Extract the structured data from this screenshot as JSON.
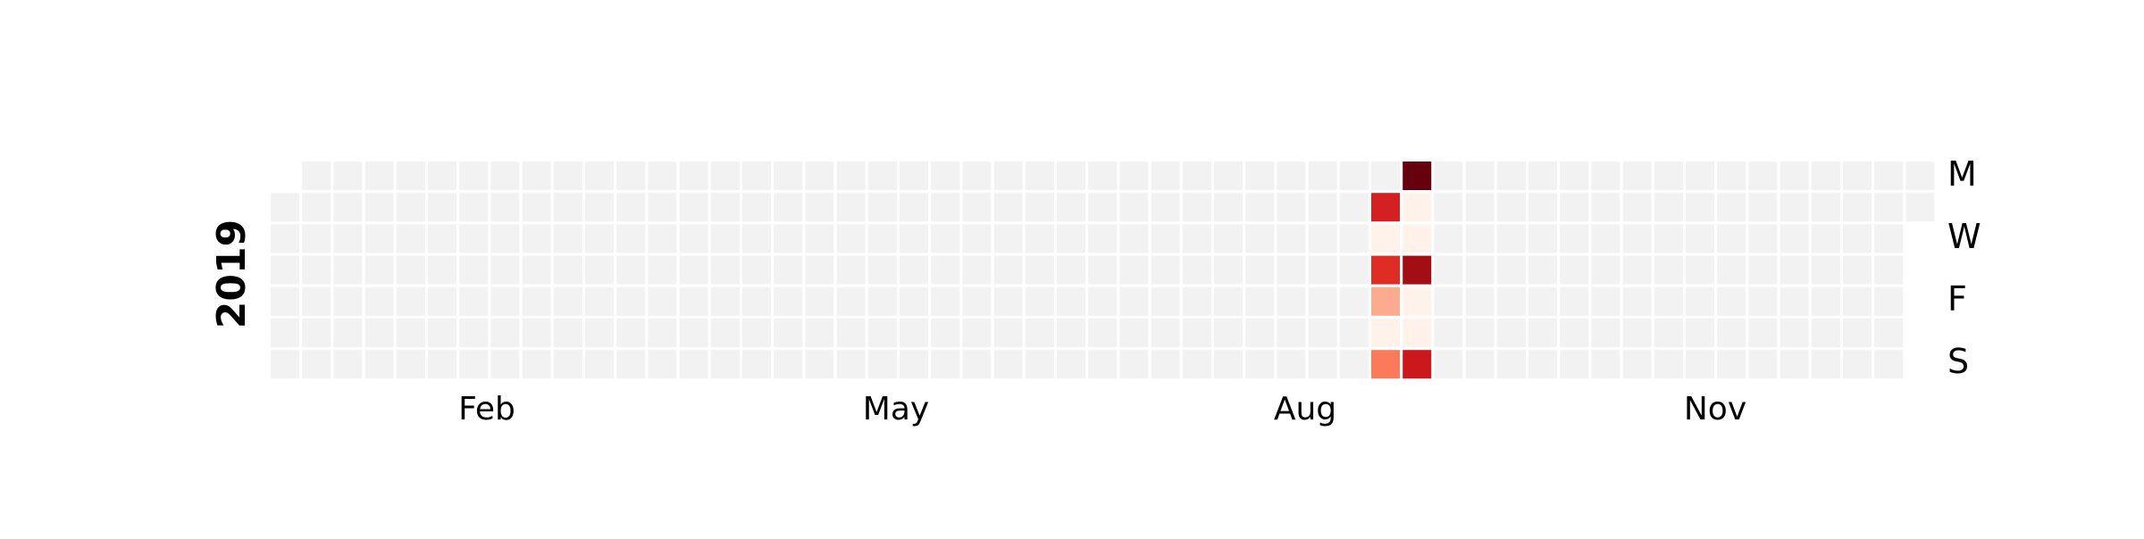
{
  "chart_data": {
    "type": "heatmap",
    "title": "",
    "year_label": "2019",
    "months": [
      "Feb",
      "May",
      "Aug",
      "Nov"
    ],
    "day_labels": [
      "M",
      "W",
      "F",
      "S"
    ],
    "grid": {
      "weeks": 53,
      "days_per_week": 7,
      "first_day_row": 1,
      "last_day_row": 1
    },
    "empty_color": "#f2f2f2",
    "colormap": "Reds",
    "vmin": 0,
    "vmax": 1,
    "highlighted_cells": [
      {
        "week": 35,
        "row": 1,
        "value": 0.72
      },
      {
        "week": 35,
        "row": 2,
        "value": 0.02
      },
      {
        "week": 35,
        "row": 3,
        "value": 0.68
      },
      {
        "week": 35,
        "row": 4,
        "value": 0.3
      },
      {
        "week": 35,
        "row": 5,
        "value": 0.02
      },
      {
        "week": 35,
        "row": 6,
        "value": 0.45
      },
      {
        "week": 36,
        "row": 0,
        "value": 1.0
      },
      {
        "week": 36,
        "row": 1,
        "value": 0.02
      },
      {
        "week": 36,
        "row": 2,
        "value": 0.02
      },
      {
        "week": 36,
        "row": 3,
        "value": 0.88
      },
      {
        "week": 36,
        "row": 4,
        "value": 0.02
      },
      {
        "week": 36,
        "row": 5,
        "value": 0.02
      },
      {
        "week": 36,
        "row": 6,
        "value": 0.75
      }
    ]
  }
}
